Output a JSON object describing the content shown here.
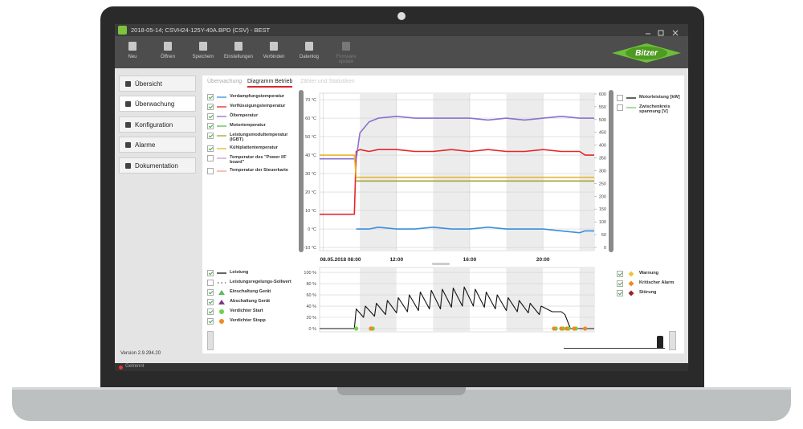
{
  "window": {
    "title": "2018-05-14; CSVH24-125Y-40A.BPD (CSV) - BEST"
  },
  "toolbar": [
    "Neu",
    "Öffnen",
    "Speichern",
    "Einstellungen",
    "Verbinden",
    "Datenlog",
    "Firmware update"
  ],
  "logo": "Bitzer",
  "sidebar": [
    "Übersicht",
    "Überwachung",
    "Konfiguration",
    "Alarme",
    "Dokumentation"
  ],
  "tabs": [
    "Überwachung",
    "Diagramm Betrieb",
    "Zähler und Statistiken"
  ],
  "active_tab": 1,
  "version": "Version 2.9.294.20",
  "status": "Getrennt",
  "charts": [
    {
      "type": "line",
      "x": [
        7.8,
        9.7,
        9.8,
        10,
        10.5,
        11,
        12,
        13,
        14,
        15,
        16,
        17,
        18,
        19,
        20,
        21,
        22,
        22.3,
        22.8
      ],
      "xlim": [
        7.8,
        22.8
      ],
      "xticks": [
        {
          "value": 8,
          "label": "08.05.2018 08:00"
        },
        {
          "value": 12,
          "label": "12:00"
        },
        {
          "value": 16,
          "label": "16:00"
        },
        {
          "value": 20,
          "label": "20:00"
        }
      ],
      "ylim": [
        -11.7,
        73.5
      ],
      "yticks": [
        {
          "value": 70,
          "label": "70 °C"
        },
        {
          "value": 60,
          "label": "60 °C"
        },
        {
          "value": 50,
          "label": "50 °C"
        },
        {
          "value": 40,
          "label": "40 °C"
        },
        {
          "value": 30,
          "label": "30 °C"
        },
        {
          "value": 20,
          "label": "20 °C"
        },
        {
          "value": 10,
          "label": "10 °C"
        },
        {
          "value": 0,
          "label": "0 °C"
        },
        {
          "value": -10,
          "label": "-10 °C"
        }
      ],
      "y2lim": [
        -12.6,
        603
      ],
      "y2ticks": [
        600,
        550,
        500,
        450,
        400,
        350,
        300,
        250,
        200,
        150,
        100,
        50,
        0
      ],
      "grid": true,
      "series": [
        {
          "name": "Verdampfungstemperatur",
          "color": "#3a8edb",
          "checked": true,
          "marker": "line",
          "values": [
            null,
            null,
            0,
            0,
            0,
            1,
            0,
            0,
            1,
            0,
            0,
            1,
            0,
            0,
            0,
            -1,
            -2,
            -1,
            -1
          ]
        },
        {
          "name": "Verflüssigungstemperatur",
          "color": "#e8262a",
          "checked": true,
          "marker": "line",
          "values": [
            8,
            8,
            42,
            43,
            42,
            43,
            43,
            42,
            42,
            43,
            42,
            43,
            42,
            42,
            43,
            42,
            42,
            40,
            40
          ]
        },
        {
          "name": "Öltemperatur",
          "color": "#8a70d0",
          "checked": true,
          "marker": "line",
          "values": [
            38,
            38,
            38,
            52,
            58,
            60,
            61,
            60,
            60,
            60,
            60,
            59,
            60,
            59,
            60,
            61,
            60,
            60,
            60
          ]
        },
        {
          "name": "Motortemperatur",
          "color": "#5cb85c",
          "checked": true,
          "marker": "line"
        },
        {
          "name": "Leistungsmodultemperatur (IGBT)",
          "color": "#a3a33a",
          "checked": true,
          "marker": "line",
          "values": [
            null,
            null,
            26,
            26,
            26,
            26,
            26,
            26,
            26,
            26,
            26,
            26,
            26,
            26,
            26,
            26,
            26,
            26,
            26
          ]
        },
        {
          "name": "Kühlplattentemperatur",
          "color": "#e8b52f",
          "checked": true,
          "marker": "line",
          "values": [
            40,
            40,
            28,
            28,
            28,
            28,
            28,
            28,
            28,
            28,
            28,
            28,
            28,
            28,
            28,
            28,
            28,
            28,
            28
          ]
        },
        {
          "name": "Temperatur des \"Power I/F board\"",
          "color": "#c9a0d8",
          "checked": false,
          "marker": "line"
        },
        {
          "name": "Temperatur der Steuerkarte",
          "color": "#f0a080",
          "checked": false,
          "marker": "line"
        },
        {
          "name": "Motorleistung [kW]",
          "color": "#111111",
          "checked": false,
          "marker": "line",
          "axis": "y2"
        },
        {
          "name": "Zwischenkreis spannung [V]",
          "color": "#7bc96f",
          "checked": false,
          "marker": "line",
          "axis": "y2"
        }
      ]
    },
    {
      "type": "line",
      "xlim": [
        7.8,
        22.8
      ],
      "ylim": [
        -5.7,
        108.6
      ],
      "yticks": [
        {
          "value": 100,
          "label": "100 %"
        },
        {
          "value": 80,
          "label": "80 %"
        },
        {
          "value": 60,
          "label": "60 %"
        },
        {
          "value": 40,
          "label": "40 %"
        },
        {
          "value": 20,
          "label": "20 %"
        },
        {
          "value": 0,
          "label": "0 %"
        }
      ],
      "grid": true,
      "series": [
        {
          "name": "Leistung",
          "color": "#111111",
          "checked": true,
          "marker": "line",
          "x": [
            7.8,
            9.7,
            9.8,
            10.2,
            10.3,
            10.8,
            10.9,
            11.4,
            11.5,
            12,
            12.1,
            12.6,
            12.7,
            13.2,
            13.3,
            13.8,
            13.9,
            14.4,
            14.5,
            15,
            15.1,
            15.6,
            15.7,
            16.2,
            16.3,
            16.8,
            16.9,
            17.4,
            17.5,
            18,
            18.1,
            18.6,
            18.7,
            19.2,
            19.3,
            19.8,
            19.9,
            20.5,
            21,
            21.2,
            21.5,
            22,
            22.8
          ],
          "values": [
            0,
            0,
            35,
            20,
            40,
            22,
            45,
            25,
            50,
            28,
            55,
            30,
            60,
            32,
            65,
            35,
            68,
            35,
            70,
            38,
            72,
            40,
            74,
            40,
            70,
            38,
            65,
            35,
            60,
            32,
            55,
            30,
            50,
            28,
            45,
            25,
            40,
            30,
            30,
            25,
            0,
            0,
            0
          ]
        },
        {
          "name": "Leistungsregelungs-Sollwert",
          "color": "#555555",
          "checked": false,
          "marker": "dashes"
        },
        {
          "name": "Einschaltung Gerät",
          "color": "#5cb85c",
          "checked": true,
          "marker": "triangle"
        },
        {
          "name": "Abschaltung Gerät",
          "color": "#7a3a8a",
          "checked": true,
          "marker": "triangle"
        },
        {
          "name": "Verdichter Start",
          "color": "#6fd04a",
          "checked": true,
          "marker": "circle",
          "x": [
            9.8,
            10.7,
            20.7,
            21.1,
            21.4,
            21.8
          ],
          "values": [
            0,
            0,
            0,
            0,
            0,
            0
          ]
        },
        {
          "name": "Verdichter Stopp",
          "color": "#f08a24",
          "checked": true,
          "marker": "circle",
          "x": [
            10.6,
            20.6,
            21.0,
            21.3,
            21.7,
            22.3
          ],
          "values": [
            0,
            0,
            0,
            0,
            0,
            0
          ]
        },
        {
          "name": "Warnung",
          "color": "#e8c53a",
          "checked": true,
          "marker": "diamond"
        },
        {
          "name": "Kritischer Alarm",
          "color": "#f08a24",
          "checked": true,
          "marker": "diamond"
        },
        {
          "name": "Störung",
          "color": "#a0202a",
          "checked": true,
          "marker": "diamond"
        }
      ]
    }
  ]
}
